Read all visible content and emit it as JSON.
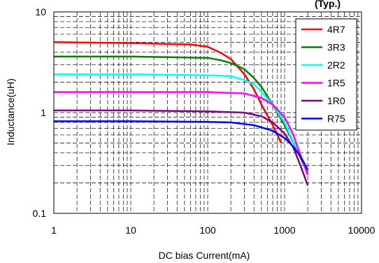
{
  "chart_data": {
    "type": "line",
    "corner_text": "(Typ.)",
    "xlabel": "DC bias Current(mA)",
    "ylabel": "Inductance(uH)",
    "x_scale": "log",
    "y_scale": "log",
    "xlim": [
      1,
      10000
    ],
    "ylim": [
      0.1,
      10
    ],
    "x_ticks": [
      1,
      10,
      100,
      1000,
      10000
    ],
    "x_tick_labels": [
      "1",
      "10",
      "100",
      "1000",
      "10000"
    ],
    "y_ticks": [
      0.1,
      1,
      10
    ],
    "y_tick_labels": [
      "0.1",
      "1",
      "10"
    ],
    "grid": true,
    "grid_style": "dashed",
    "legend_position": "top-right",
    "series": [
      {
        "name": "4R7",
        "color": "#ff0000",
        "x": [
          1,
          10,
          60,
          100,
          150,
          200,
          300,
          400,
          500,
          700,
          900
        ],
        "y": [
          5.0,
          4.9,
          4.75,
          4.5,
          3.9,
          3.4,
          2.4,
          1.7,
          1.2,
          0.75,
          0.5
        ]
      },
      {
        "name": "3R3",
        "color": "#008000",
        "x": [
          1,
          10,
          100,
          150,
          200,
          300,
          400,
          500,
          700,
          1000,
          1400,
          2000
        ],
        "y": [
          3.6,
          3.6,
          3.5,
          3.3,
          3.1,
          2.7,
          2.2,
          1.8,
          1.2,
          0.75,
          0.45,
          0.25
        ]
      },
      {
        "name": "2R2",
        "color": "#00ffff",
        "x": [
          1,
          10,
          100,
          200,
          300,
          400,
          500,
          700,
          1000,
          1400,
          2000
        ],
        "y": [
          2.4,
          2.4,
          2.35,
          2.3,
          2.1,
          1.9,
          1.6,
          1.2,
          0.8,
          0.45,
          0.27
        ]
      },
      {
        "name": "1R5",
        "color": "#ff00ff",
        "x": [
          1,
          10,
          100,
          300,
          500,
          700,
          1000,
          1300,
          1600,
          2000
        ],
        "y": [
          1.6,
          1.6,
          1.6,
          1.55,
          1.4,
          1.2,
          0.9,
          0.6,
          0.38,
          0.24
        ]
      },
      {
        "name": "1R0",
        "color": "#800080",
        "x": [
          1,
          10,
          100,
          300,
          500,
          700,
          1000,
          1300,
          1600,
          2000
        ],
        "y": [
          1.05,
          1.05,
          1.03,
          1.0,
          0.92,
          0.8,
          0.62,
          0.45,
          0.3,
          0.19
        ]
      },
      {
        "name": "R75",
        "color": "#0000ff",
        "x": [
          1,
          10,
          100,
          200,
          400,
          700,
          1000,
          1300,
          1600,
          2000
        ],
        "y": [
          0.82,
          0.82,
          0.81,
          0.8,
          0.75,
          0.66,
          0.56,
          0.46,
          0.37,
          0.27
        ]
      }
    ]
  }
}
